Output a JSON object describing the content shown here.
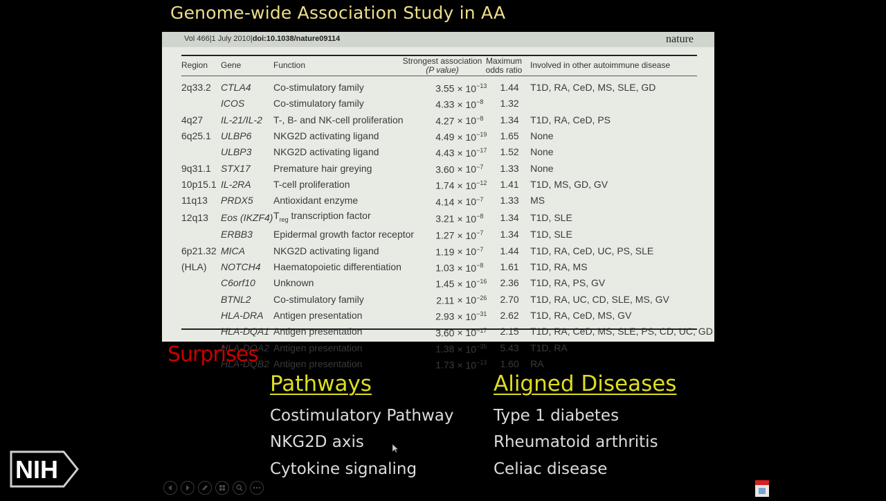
{
  "slide": {
    "title": "Genome-wide Association Study in AA"
  },
  "paper": {
    "citation_prefix": "Vol 466|1 July 2010|",
    "doi": "doi:10.1038/nature09114",
    "journal": "nature",
    "headers": {
      "region": "Region",
      "gene": "Gene",
      "function": "Function",
      "strongest_line1": "Strongest association",
      "strongest_line2": "(P value)",
      "odds_line1": "Maximum",
      "odds_line2": "odds ratio",
      "other": "Involved in other autoimmune disease"
    },
    "rows": [
      {
        "region": "2q33.2",
        "gene": "CTLA4",
        "function": "Co-stimulatory family",
        "p_mant": "3.55",
        "p_exp": "−13",
        "odds": "1.44",
        "other": "T1D, RA, CeD, MS, SLE, GD"
      },
      {
        "region": "",
        "gene": "ICOS",
        "function": "Co-stimulatory family",
        "p_mant": "4.33",
        "p_exp": "−8",
        "odds": "1.32",
        "other": ""
      },
      {
        "region": "4q27",
        "gene": "IL-21/IL-2",
        "function": "T-, B- and NK-cell proliferation",
        "p_mant": "4.27",
        "p_exp": "−8",
        "odds": "1.34",
        "other": "T1D, RA, CeD, PS"
      },
      {
        "region": "6q25.1",
        "gene": "ULBP6",
        "function": "NKG2D activating ligand",
        "p_mant": "4.49",
        "p_exp": "−19",
        "odds": "1.65",
        "other": "None"
      },
      {
        "region": "",
        "gene": "ULBP3",
        "function": "NKG2D activating ligand",
        "p_mant": "4.43",
        "p_exp": "−17",
        "odds": "1.52",
        "other": "None"
      },
      {
        "region": "9q31.1",
        "gene": "STX17",
        "function": "Premature hair greying",
        "p_mant": "3.60",
        "p_exp": "−7",
        "odds": "1.33",
        "other": "None"
      },
      {
        "region": "10p15.1",
        "gene": "IL-2RA",
        "function": "T-cell proliferation",
        "p_mant": "1.74",
        "p_exp": "−12",
        "odds": "1.41",
        "other": "T1D, MS, GD, GV"
      },
      {
        "region": "11q13",
        "gene": "PRDX5",
        "function": "Antioxidant enzyme",
        "p_mant": "4.14",
        "p_exp": "−7",
        "odds": "1.33",
        "other": "MS"
      },
      {
        "region": "12q13",
        "gene": "Eos (IKZF4)",
        "function_main": "T",
        "function_sub": "reg",
        "function": " transcription factor",
        "p_mant": "3.21",
        "p_exp": "−8",
        "odds": "1.34",
        "other": "T1D, SLE"
      },
      {
        "region": "",
        "gene": "ERBB3",
        "function": "Epidermal growth factor receptor",
        "p_mant": "1.27",
        "p_exp": "−7",
        "odds": "1.34",
        "other": "T1D, SLE"
      },
      {
        "region": "6p21.32",
        "gene": "MICA",
        "function": "NKG2D activating ligand",
        "p_mant": "1.19",
        "p_exp": "−7",
        "odds": "1.44",
        "other": "T1D, RA, CeD, UC, PS, SLE"
      },
      {
        "region": "(HLA)",
        "gene": "NOTCH4",
        "function": "Haematopoietic differentiation",
        "p_mant": "1.03",
        "p_exp": "−8",
        "odds": "1.61",
        "other": "T1D, RA, MS"
      },
      {
        "region": "",
        "gene": "C6orf10",
        "function": "Unknown",
        "p_mant": "1.45",
        "p_exp": "−16",
        "odds": "2.36",
        "other": "T1D, RA, PS, GV"
      },
      {
        "region": "",
        "gene": "BTNL2",
        "function": "Co-stimulatory family",
        "p_mant": "2.11",
        "p_exp": "−26",
        "odds": "2.70",
        "other": "T1D, RA, UC, CD, SLE, MS, GV"
      },
      {
        "region": "",
        "gene": "HLA-DRA",
        "function": "Antigen presentation",
        "p_mant": "2.93",
        "p_exp": "−31",
        "odds": "2.62",
        "other": "T1D, RA, CeD, MS, GV"
      },
      {
        "region": "",
        "gene": "HLA-DQA1",
        "function": "Antigen presentation",
        "p_mant": "3.60",
        "p_exp": "−17",
        "odds": "2.15",
        "other": "T1D, RA, CeD, MS, SLE, PS, CD, UC, GD"
      },
      {
        "region": "",
        "gene": "HLA-DQA2",
        "function": "Antigen presentation",
        "p_mant": "1.38",
        "p_exp": "−35",
        "odds": "5.43",
        "other": "T1D, RA"
      },
      {
        "region": "",
        "gene": "HLA-DQB2",
        "function": "Antigen presentation",
        "p_mant": "1.73",
        "p_exp": "−13",
        "odds": "1.60",
        "other": "RA"
      }
    ],
    "times_ten": "× 10"
  },
  "surprises": {
    "label": "Surprises",
    "pathways": {
      "heading": "Pathways",
      "items": [
        "Costimulatory Pathway",
        "NKG2D axis",
        "Cytokine signaling"
      ]
    },
    "diseases": {
      "heading": "Aligned Diseases",
      "items": [
        "Type 1 diabetes",
        "Rheumatoid arthritis",
        "Celiac disease"
      ]
    }
  },
  "logo": {
    "text": "NIH"
  },
  "controls": {
    "icons": [
      "previous-icon",
      "next-icon",
      "pen-icon",
      "slides-icon",
      "zoom-icon",
      "more-icon"
    ]
  },
  "colors": {
    "title": "#eedf8a",
    "surprises": "#c80000",
    "headings": "#dede22",
    "items": "#dcdcdc",
    "panel": "#e7ebe4"
  }
}
